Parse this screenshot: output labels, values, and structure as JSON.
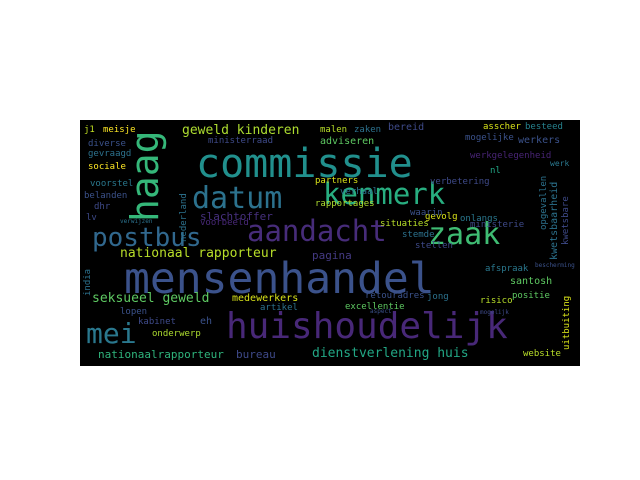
{
  "cloud": {
    "background": "#000000",
    "words": [
      {
        "text": "mensenhandel",
        "color": "#3b528b"
      },
      {
        "text": "commissie",
        "color": "#21908d"
      },
      {
        "text": "huishoudelijk",
        "color": "#482878"
      },
      {
        "text": "haag",
        "color": "#35b779"
      },
      {
        "text": "datum",
        "color": "#2c728e"
      },
      {
        "text": "kenmerk",
        "color": "#28ae80"
      },
      {
        "text": "aandacht",
        "color": "#472c7a"
      },
      {
        "text": "postbus",
        "color": "#31688e"
      },
      {
        "text": "zaak",
        "color": "#3fbc73"
      },
      {
        "text": "mei",
        "color": "#2a788e"
      },
      {
        "text": "dienstverlening huis",
        "color": "#22a785"
      },
      {
        "text": "nationaal rapporteur",
        "color": "#b8de29"
      },
      {
        "text": "seksueel geweld",
        "color": "#5ec962"
      },
      {
        "text": "geweld kinderen",
        "color": "#addc30"
      },
      {
        "text": "werkgelegenheid",
        "color": "#482475"
      },
      {
        "text": "slachtoffer",
        "color": "#46307e"
      },
      {
        "text": "nationaalrapporteur",
        "color": "#2fb47c"
      },
      {
        "text": "bureau",
        "color": "#3e4989"
      },
      {
        "text": "pagina",
        "color": "#443a83"
      },
      {
        "text": "adviseren",
        "color": "#5ec962"
      },
      {
        "text": "ministerraad",
        "color": "#3e4a89"
      },
      {
        "text": "bereid",
        "color": "#3e4a89"
      },
      {
        "text": "zaken",
        "color": "#2c728e"
      },
      {
        "text": "malen",
        "color": "#b8de29"
      },
      {
        "text": "asscher",
        "color": "#d8e219"
      },
      {
        "text": "besteed",
        "color": "#26828e"
      },
      {
        "text": "mogelijke",
        "color": "#3b528b"
      },
      {
        "text": "werkers",
        "color": "#3b528b"
      },
      {
        "text": "meisje",
        "color": "#fde725"
      },
      {
        "text": "j1",
        "color": "#c2df23"
      },
      {
        "text": "gevraagd",
        "color": "#2c728e"
      },
      {
        "text": "diverse",
        "color": "#3b528b"
      },
      {
        "text": "sociale",
        "color": "#fde725"
      },
      {
        "text": "voorstel",
        "color": "#2a788e"
      },
      {
        "text": "belanden",
        "color": "#3b528b"
      },
      {
        "text": "dhr",
        "color": "#3e4a89"
      },
      {
        "text": "lv",
        "color": "#3e4a89"
      },
      {
        "text": "voorbeeld",
        "color": "#482878"
      },
      {
        "text": "nederland",
        "color": "#2c728e"
      },
      {
        "text": "partners",
        "color": "#d8e219"
      },
      {
        "text": "verhaal",
        "color": "#2c728e"
      },
      {
        "text": "rapportages",
        "color": "#addc30"
      },
      {
        "text": "verbetering",
        "color": "#3e4a89"
      },
      {
        "text": "nl",
        "color": "#22a785"
      },
      {
        "text": "werk",
        "color": "#2a788e"
      },
      {
        "text": "gevolg",
        "color": "#d8e219"
      },
      {
        "text": "onlangs",
        "color": "#2a788e"
      },
      {
        "text": "situaties",
        "color": "#b8de29"
      },
      {
        "text": "stemde",
        "color": "#2c728e"
      },
      {
        "text": "stellen",
        "color": "#3e4a89"
      },
      {
        "text": "waarin",
        "color": "#3b528b"
      },
      {
        "text": "ministerie",
        "color": "#3e4a89"
      },
      {
        "text": "kwetsbaarheid",
        "color": "#2c728e"
      },
      {
        "text": "kwetsbare",
        "color": "#3e4a89"
      },
      {
        "text": "opgevallen",
        "color": "#2c728e"
      },
      {
        "text": "afspraak",
        "color": "#2a788e"
      },
      {
        "text": "santosh",
        "color": "#5ec962"
      },
      {
        "text": "positie",
        "color": "#5ec962"
      },
      {
        "text": "jong",
        "color": "#2c728e"
      },
      {
        "text": "risico",
        "color": "#b8de29"
      },
      {
        "text": "retouradres",
        "color": "#3b528b"
      },
      {
        "text": "excellentie",
        "color": "#5ec962"
      },
      {
        "text": "artikel",
        "color": "#2c728e"
      },
      {
        "text": "medewerkers",
        "color": "#d8e219"
      },
      {
        "text": "eh",
        "color": "#3b528b"
      },
      {
        "text": "onderwerp",
        "color": "#addc30"
      },
      {
        "text": "kabinet",
        "color": "#3e4a89"
      },
      {
        "text": "lopen",
        "color": "#3b528b"
      },
      {
        "text": "india",
        "color": "#2c728e"
      },
      {
        "text": "uitbuiting",
        "color": "#d8e219"
      },
      {
        "text": "website",
        "color": "#b8de29"
      },
      {
        "text": "bescherming",
        "color": "#3b528b"
      },
      {
        "text": "verwijzen",
        "color": "#2c728e"
      },
      {
        "text": "aspect",
        "color": "#3b528b"
      },
      {
        "text": "mogelijk",
        "color": "#3e4a89"
      }
    ]
  }
}
